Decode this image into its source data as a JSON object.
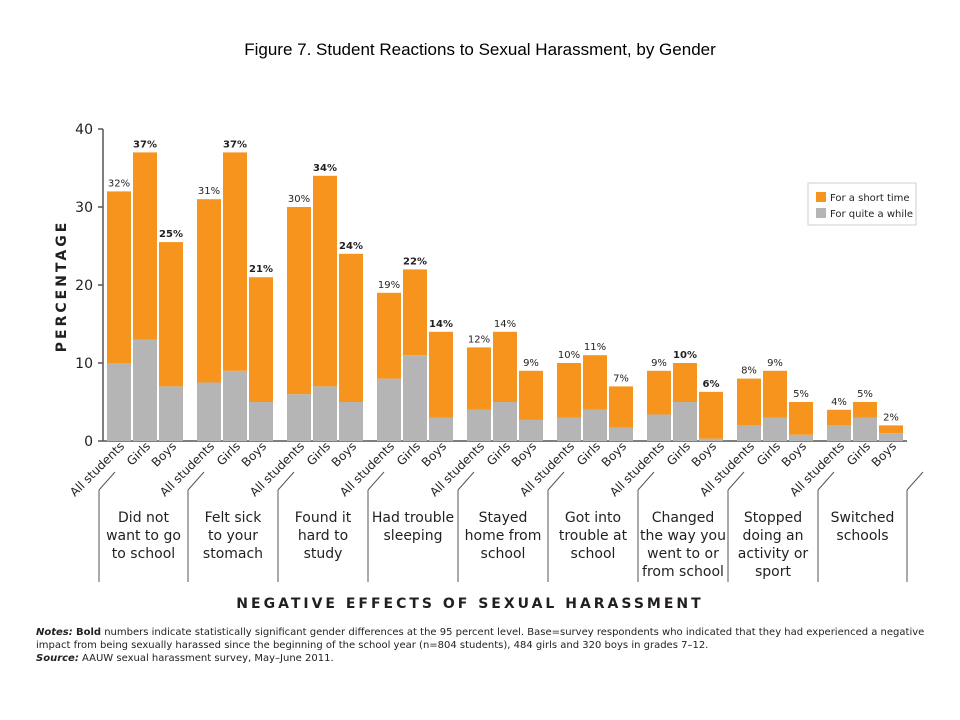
{
  "title": "Figure 7. Student Reactions to Sexual Harassment, by Gender",
  "notes": {
    "notes_label": "Notes:",
    "bold_word": "Bold",
    "notes_text": "numbers indicate statistically significant gender differences at the 95 percent level. Base=survey respondents who indicated that they had experienced a negative impact from being sexually harassed since the beginning of the school year (n=804 students), 484 girls and 320 boys in grades 7–12.",
    "source_label": "Source:",
    "source_text": "AAUW sexual harassment survey, May–June 2011."
  },
  "chart_data": {
    "type": "bar",
    "stacked": true,
    "ylabel": "PERCENTAGE",
    "xlabel": "NEGATIVE EFFECTS OF SEXUAL HARASSMENT",
    "ylim": [
      0,
      40
    ],
    "yticks": [
      0,
      10,
      20,
      30,
      40
    ],
    "grid": false,
    "legend": "top-right",
    "colors": {
      "short": "#f7941d",
      "while": "#b5b5b5",
      "axis": "#555555",
      "text": "#231f20"
    },
    "series": [
      {
        "name": "For a short time",
        "key": "short"
      },
      {
        "name": "For quite a while",
        "key": "while"
      }
    ],
    "groups": [
      {
        "label": [
          "Did not",
          "want to go",
          "to school"
        ],
        "bars": [
          {
            "category": "All students",
            "total": 32,
            "quite_a_while": 10,
            "short_time": 22,
            "label": "32%",
            "bold": false
          },
          {
            "category": "Girls",
            "total": 37,
            "quite_a_while": 13,
            "short_time": 24,
            "label": "37%",
            "bold": true
          },
          {
            "category": "Boys",
            "total": 25.5,
            "quite_a_while": 7,
            "short_time": 18.5,
            "label": "25%",
            "bold": true
          }
        ]
      },
      {
        "label": [
          "Felt sick",
          "to your",
          "stomach"
        ],
        "bars": [
          {
            "category": "All students",
            "total": 31,
            "quite_a_while": 7.5,
            "short_time": 23.5,
            "label": "31%",
            "bold": false
          },
          {
            "category": "Girls",
            "total": 37,
            "quite_a_while": 9,
            "short_time": 28,
            "label": "37%",
            "bold": true
          },
          {
            "category": "Boys",
            "total": 21,
            "quite_a_while": 5,
            "short_time": 16,
            "label": "21%",
            "bold": true
          }
        ]
      },
      {
        "label": [
          "Found it",
          "hard to",
          "study"
        ],
        "bars": [
          {
            "category": "All students",
            "total": 30,
            "quite_a_while": 6,
            "short_time": 24,
            "label": "30%",
            "bold": false
          },
          {
            "category": "Girls",
            "total": 34,
            "quite_a_while": 7,
            "short_time": 27,
            "label": "34%",
            "bold": true
          },
          {
            "category": "Boys",
            "total": 24,
            "quite_a_while": 5,
            "short_time": 19,
            "label": "24%",
            "bold": true
          }
        ]
      },
      {
        "label": [
          "Had trouble",
          "sleeping"
        ],
        "bars": [
          {
            "category": "All students",
            "total": 19,
            "quite_a_while": 8,
            "short_time": 11,
            "label": "19%",
            "bold": false
          },
          {
            "category": "Girls",
            "total": 22,
            "quite_a_while": 11,
            "short_time": 11,
            "label": "22%",
            "bold": true
          },
          {
            "category": "Boys",
            "total": 14,
            "quite_a_while": 3,
            "short_time": 11,
            "label": "14%",
            "bold": true
          }
        ]
      },
      {
        "label": [
          "Stayed",
          "home from",
          "school"
        ],
        "bars": [
          {
            "category": "All students",
            "total": 12,
            "quite_a_while": 4,
            "short_time": 8,
            "label": "12%",
            "bold": false
          },
          {
            "category": "Girls",
            "total": 14,
            "quite_a_while": 5,
            "short_time": 9,
            "label": "14%",
            "bold": false
          },
          {
            "category": "Boys",
            "total": 9,
            "quite_a_while": 2.7,
            "short_time": 6.3,
            "label": "9%",
            "bold": false
          }
        ]
      },
      {
        "label": [
          "Got into",
          "trouble at",
          "school"
        ],
        "bars": [
          {
            "category": "All students",
            "total": 10,
            "quite_a_while": 3,
            "short_time": 7,
            "label": "10%",
            "bold": false
          },
          {
            "category": "Girls",
            "total": 11,
            "quite_a_while": 4,
            "short_time": 7,
            "label": "11%",
            "bold": false
          },
          {
            "category": "Boys",
            "total": 7,
            "quite_a_while": 1.7,
            "short_time": 5.3,
            "label": "7%",
            "bold": false
          }
        ]
      },
      {
        "label": [
          "Changed",
          "the way you",
          "went to or",
          "from school"
        ],
        "bars": [
          {
            "category": "All students",
            "total": 9,
            "quite_a_while": 3.4,
            "short_time": 5.6,
            "label": "9%",
            "bold": false
          },
          {
            "category": "Girls",
            "total": 10,
            "quite_a_while": 5,
            "short_time": 5,
            "label": "10%",
            "bold": true
          },
          {
            "category": "Boys",
            "total": 6.3,
            "quite_a_while": 0.3,
            "short_time": 6,
            "label": "6%",
            "bold": true
          }
        ]
      },
      {
        "label": [
          "Stopped",
          "doing an",
          "activity or",
          "sport"
        ],
        "bars": [
          {
            "category": "All students",
            "total": 8,
            "quite_a_while": 2,
            "short_time": 6,
            "label": "8%",
            "bold": false
          },
          {
            "category": "Girls",
            "total": 9,
            "quite_a_while": 3,
            "short_time": 6,
            "label": "9%",
            "bold": false
          },
          {
            "category": "Boys",
            "total": 5,
            "quite_a_while": 0.8,
            "short_time": 4.2,
            "label": "5%",
            "bold": false
          }
        ]
      },
      {
        "label": [
          "Switched",
          "schools"
        ],
        "bars": [
          {
            "category": "All students",
            "total": 4,
            "quite_a_while": 2,
            "short_time": 2,
            "label": "4%",
            "bold": false
          },
          {
            "category": "Girls",
            "total": 5,
            "quite_a_while": 3,
            "short_time": 2,
            "label": "5%",
            "bold": false
          },
          {
            "category": "Boys",
            "total": 2,
            "quite_a_while": 1,
            "short_time": 1,
            "label": "2%",
            "bold": false
          }
        ]
      }
    ]
  }
}
